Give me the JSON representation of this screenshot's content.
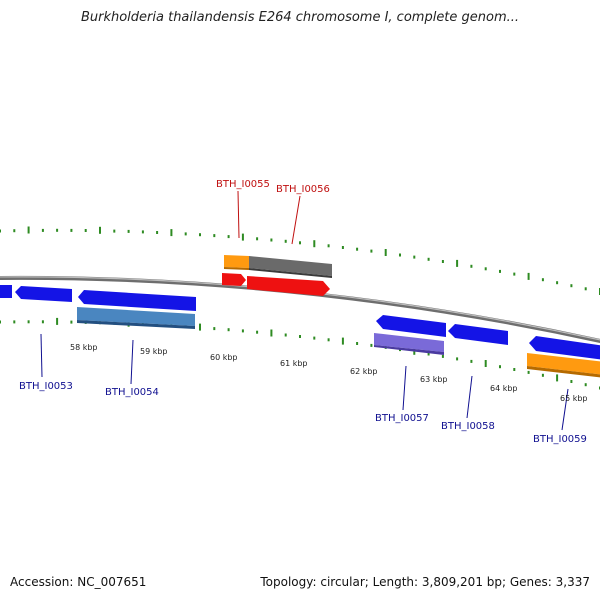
{
  "title": "Burkholderia thailandensis E264 chromosome I, complete genom...",
  "accession": "Accession: NC_007651",
  "topology": "Topology: circular; Length: 3,809,201 bp; Genes: 3,337",
  "tick_labels": [
    "58 kbp",
    "59 kbp",
    "60 kbp",
    "61 kbp",
    "62 kbp",
    "63 kbp",
    "64 kbp",
    "65 kbp"
  ],
  "gene_labels": [
    "BTH_I0053",
    "BTH_I0054",
    "BTH_I0055",
    "BTH_I0056",
    "BTH_I0057",
    "BTH_I0058",
    "BTH_I0059"
  ],
  "colors": {
    "backbone": "#8c8c8c",
    "tick_green": "#2e8b22",
    "forward_blue": "#1414e6",
    "red": "#ee1111",
    "orange": "#ff9a10",
    "gray_bar": "#6a6a6a",
    "steel_blue": "#4a86c0",
    "lavender": "#7a6ad8",
    "label_blue": "#101090",
    "label_red": "#c01010"
  }
}
